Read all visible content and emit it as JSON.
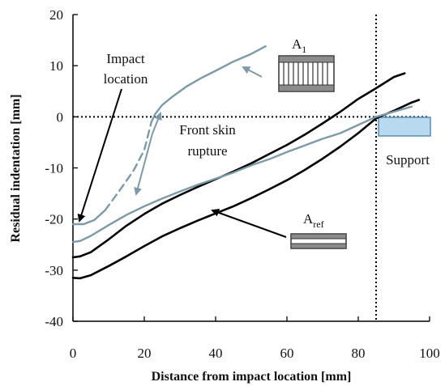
{
  "chart_data": {
    "type": "line",
    "xlabel": "Distance from impact location [mm]",
    "ylabel": "Residual indentation [mm]",
    "xlim": [
      0,
      100
    ],
    "ylim": [
      -40,
      20
    ],
    "xticks": [
      0,
      20,
      40,
      60,
      80,
      100
    ],
    "yticks": [
      -40,
      -30,
      -20,
      -10,
      0,
      10,
      20
    ],
    "grid": false,
    "reference_lines": {
      "zero_line": {
        "y": 0,
        "style": "dotted"
      },
      "support_line": {
        "x": 85,
        "style": "dotted"
      }
    },
    "series": [
      {
        "color": "#000000",
        "width": 2.6,
        "style": "solid",
        "x": [
          0,
          2,
          5,
          10,
          15,
          20,
          25,
          30,
          35,
          40,
          45,
          50,
          55,
          60,
          65,
          70,
          75,
          80,
          85,
          90,
          95,
          97
        ],
        "y": [
          -31.5,
          -31.6,
          -31,
          -29.2,
          -27.3,
          -25.3,
          -23.4,
          -21.8,
          -20.3,
          -18.9,
          -17.5,
          -15.9,
          -14.2,
          -12.4,
          -10.4,
          -8.2,
          -5.8,
          -3.2,
          -0.3,
          1.2,
          2.8,
          3.3
        ]
      },
      {
        "color": "#000000",
        "width": 2.6,
        "style": "solid",
        "x": [
          0,
          2,
          5,
          10,
          15,
          20,
          25,
          30,
          35,
          40,
          45,
          50,
          55,
          60,
          65,
          70,
          75,
          80,
          85,
          90,
          93
        ],
        "y": [
          -27.5,
          -27.3,
          -26.5,
          -24,
          -21.3,
          -19,
          -17,
          -15.3,
          -13.7,
          -12.2,
          -10.7,
          -9.1,
          -7.3,
          -5.5,
          -3.5,
          -1.3,
          1,
          3.5,
          5.6,
          7.8,
          8.5
        ]
      },
      {
        "color": "#7d9aa6",
        "width": 2.4,
        "style": "solid",
        "x": [
          0,
          2,
          5,
          10,
          15,
          20,
          25,
          30,
          35,
          40,
          45,
          50,
          55,
          60,
          65,
          70,
          75,
          80,
          85,
          90,
          95
        ],
        "y": [
          -24.5,
          -24.3,
          -23.3,
          -21.2,
          -19.2,
          -17.5,
          -16,
          -14.6,
          -13.3,
          -12.1,
          -10.9,
          -9.5,
          -8.3,
          -6.9,
          -5.6,
          -4.3,
          -3.2,
          -1.6,
          0,
          1,
          2
        ]
      },
      {
        "color": "#7d9aa6",
        "width": 2.4,
        "style": "solid",
        "x": [
          0,
          3,
          6,
          9
        ],
        "y": [
          -21,
          -21,
          -20.2,
          -18.3
        ]
      },
      {
        "color": "#7d9aa6",
        "width": 2.4,
        "style": "dashed",
        "x": [
          9,
          13,
          17,
          20,
          22
        ],
        "y": [
          -18.3,
          -14.5,
          -10.5,
          -6.5,
          -1
        ]
      },
      {
        "color": "#7d9aa6",
        "width": 2.4,
        "style": "solid",
        "x": [
          22,
          23,
          25,
          28,
          32,
          36,
          40,
          45,
          50,
          54
        ],
        "y": [
          -1,
          0.5,
          2.3,
          4,
          6,
          7.6,
          9,
          10.8,
          12.3,
          13.8
        ]
      }
    ],
    "annotations": {
      "impact": {
        "lines": [
          "Impact",
          "location"
        ]
      },
      "front_skin": {
        "lines": [
          "Front skin",
          "rupture"
        ]
      },
      "a1": {
        "base": "A",
        "sub": "1"
      },
      "aref": {
        "base": "A",
        "sub": "ref"
      },
      "support": {
        "label": "Support"
      }
    },
    "colors": {
      "axis": "#000000",
      "gray_series": "#7d9aa6",
      "support_fill": "#b8d9ef",
      "panel_gray": "#8c8c8c"
    }
  }
}
